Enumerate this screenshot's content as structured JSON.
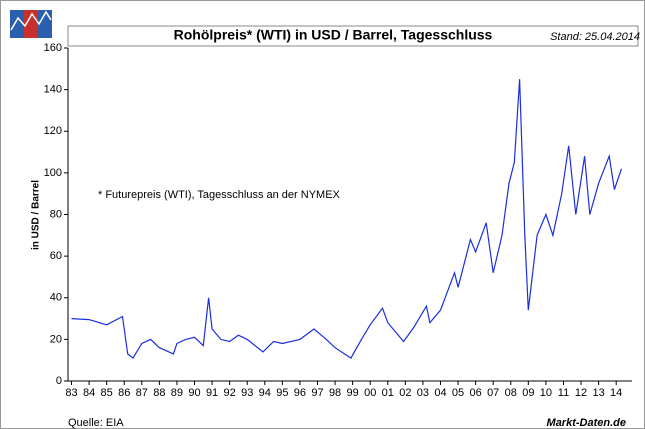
{
  "chart_data": {
    "type": "line",
    "title": "Rohölpreis* (WTI) in USD / Barrel, Tagesschluss",
    "subtitle": "Stand: 25.04.2014",
    "ylabel": "in USD / Barrel",
    "annotation": "* Futurepreis (WTI), Tagesschluss an der NYMEX",
    "source": "Quelle: EIA",
    "brand": "Markt-Daten.de",
    "grid": false,
    "ylim": [
      0,
      160
    ],
    "yticks": [
      0,
      20,
      40,
      60,
      80,
      100,
      120,
      140,
      160
    ],
    "xlim": [
      1982.8,
      2014.9
    ],
    "xticks": [
      {
        "value": 1983,
        "label": "83"
      },
      {
        "value": 1984,
        "label": "84"
      },
      {
        "value": 1985,
        "label": "85"
      },
      {
        "value": 1986,
        "label": "86"
      },
      {
        "value": 1987,
        "label": "87"
      },
      {
        "value": 1988,
        "label": "88"
      },
      {
        "value": 1989,
        "label": "89"
      },
      {
        "value": 1990,
        "label": "90"
      },
      {
        "value": 1991,
        "label": "91"
      },
      {
        "value": 1992,
        "label": "92"
      },
      {
        "value": 1993,
        "label": "93"
      },
      {
        "value": 1994,
        "label": "94"
      },
      {
        "value": 1995,
        "label": "95"
      },
      {
        "value": 1996,
        "label": "96"
      },
      {
        "value": 1997,
        "label": "97"
      },
      {
        "value": 1998,
        "label": "98"
      },
      {
        "value": 1999,
        "label": "99"
      },
      {
        "value": 2000,
        "label": "00"
      },
      {
        "value": 2001,
        "label": "01"
      },
      {
        "value": 2002,
        "label": "02"
      },
      {
        "value": 2003,
        "label": "03"
      },
      {
        "value": 2004,
        "label": "04"
      },
      {
        "value": 2005,
        "label": "05"
      },
      {
        "value": 2006,
        "label": "06"
      },
      {
        "value": 2007,
        "label": "07"
      },
      {
        "value": 2008,
        "label": "08"
      },
      {
        "value": 2009,
        "label": "09"
      },
      {
        "value": 2010,
        "label": "10"
      },
      {
        "value": 2011,
        "label": "11"
      },
      {
        "value": 2012,
        "label": "12"
      },
      {
        "value": 2013,
        "label": "13"
      },
      {
        "value": 2014,
        "label": "14"
      }
    ],
    "series": [
      {
        "name": "WTI",
        "color": "#1a2fe0",
        "x": [
          1983,
          1984,
          1985,
          1985.9,
          1986.2,
          1986.5,
          1987,
          1987.5,
          1988,
          1988.8,
          1989,
          1989.5,
          1990,
          1990.5,
          1990.8,
          1991,
          1991.5,
          1992,
          1992.5,
          1993,
          1993.9,
          1994.5,
          1995,
          1996,
          1996.8,
          1997.5,
          1998,
          1998.9,
          1999.5,
          2000,
          2000.7,
          2001,
          2001.9,
          2002.5,
          2003.2,
          2003.4,
          2004,
          2004.8,
          2005,
          2005.7,
          2006,
          2006.6,
          2007,
          2007.5,
          2007.9,
          2008.2,
          2008.5,
          2008.8,
          2009,
          2009.5,
          2010,
          2010.4,
          2010.9,
          2011.3,
          2011.7,
          2012.2,
          2012.5,
          2013,
          2013.6,
          2013.9,
          2014.3
        ],
        "values": [
          30,
          29.5,
          27,
          31,
          13,
          11,
          18,
          20,
          16,
          13,
          18,
          20,
          21,
          17,
          40,
          25,
          20,
          19,
          22,
          20,
          14,
          19,
          18,
          20,
          25,
          20,
          16,
          11,
          20,
          27,
          35,
          28,
          19,
          26,
          36,
          28,
          34,
          52,
          45,
          68,
          62,
          76,
          52,
          70,
          95,
          105,
          145,
          70,
          34,
          70,
          80,
          70,
          90,
          113,
          80,
          108,
          80,
          95,
          108,
          92,
          102
        ]
      }
    ]
  }
}
